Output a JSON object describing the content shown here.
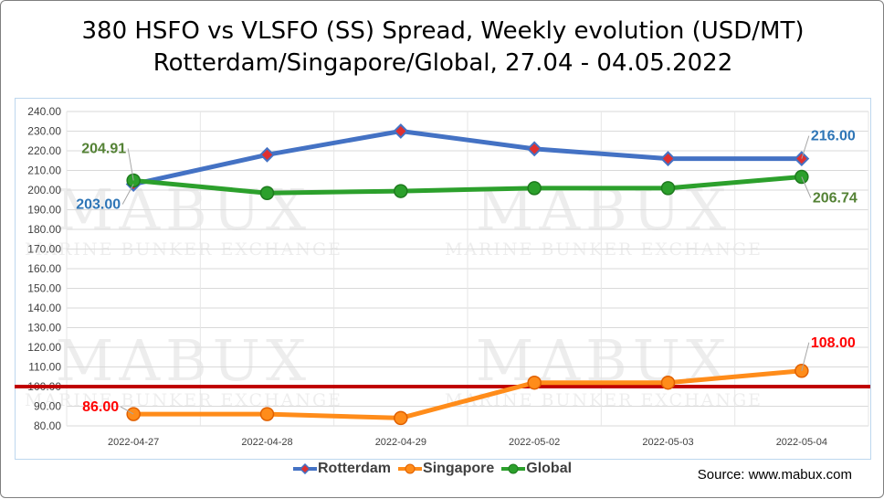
{
  "title_line1": "380 HSFO vs VLSFO (SS) Spread, Weekly evolution (USD/MT)",
  "title_line2": "Rotterdam/Singapore/Global, 27.04 - 04.05.2022",
  "source": "Source: www.mabux.com",
  "watermark": {
    "big": "MABUX",
    "small": "MARINE BUNKER EXCHANGE"
  },
  "colors": {
    "Rotterdam": "#4472c4",
    "Singapore": "#ff8c1a",
    "Global": "#2ca02c",
    "rotterdam_marker_fill": "#e03030",
    "reference_line": "#c00000"
  },
  "chart_data": {
    "type": "line",
    "categories": [
      "2022-04-27",
      "2022-04-28",
      "2022-04-29",
      "2022-05-02",
      "2022-05-03",
      "2022-05-04"
    ],
    "series": [
      {
        "name": "Rotterdam",
        "values": [
          203.0,
          218.0,
          230.0,
          221.0,
          216.0,
          216.0
        ]
      },
      {
        "name": "Singapore",
        "values": [
          86.0,
          86.0,
          84.0,
          102.0,
          102.0,
          108.0
        ]
      },
      {
        "name": "Global",
        "values": [
          204.91,
          198.5,
          199.5,
          201.0,
          201.0,
          206.74
        ]
      }
    ],
    "reference_line": 100,
    "ylim": [
      80,
      240
    ],
    "ytick_step": 10,
    "grid": true,
    "legend_position": "bottom",
    "data_labels": [
      {
        "series": "Global",
        "index": 0,
        "text": "204.91"
      },
      {
        "series": "Rotterdam",
        "index": 0,
        "text": "203.00"
      },
      {
        "series": "Rotterdam",
        "index": 5,
        "text": "216.00"
      },
      {
        "series": "Global",
        "index": 5,
        "text": "206.74"
      },
      {
        "series": "Singapore",
        "index": 0,
        "text": "86.00"
      },
      {
        "series": "Singapore",
        "index": 5,
        "text": "108.00"
      }
    ]
  }
}
